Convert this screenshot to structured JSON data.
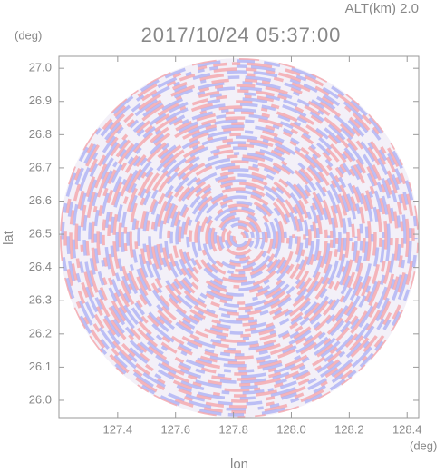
{
  "chart_data": {
    "type": "radar-ppi",
    "title": "2017/10/24 05:37:00",
    "annotation": "ALT(km) 2.0",
    "xlabel": "lon",
    "ylabel": "lat",
    "xunit": "(deg)",
    "yunit": "(deg)",
    "xlim": [
      127.197,
      128.44
    ],
    "ylim": [
      25.948,
      27.036
    ],
    "xticks": [
      127.4,
      127.6,
      127.8,
      {
        "value": 128,
        "label": "128.0"
      },
      128.2,
      128.4
    ],
    "yticks": [
      {
        "value": 26,
        "label": "26.0"
      },
      26.1,
      26.2,
      26.3,
      26.4,
      26.5,
      26.6,
      26.7,
      26.8,
      26.9,
      {
        "value": 27,
        "label": "27.0"
      }
    ],
    "colors": [
      "#f4a0a6",
      "#a8aef4"
    ]
  }
}
